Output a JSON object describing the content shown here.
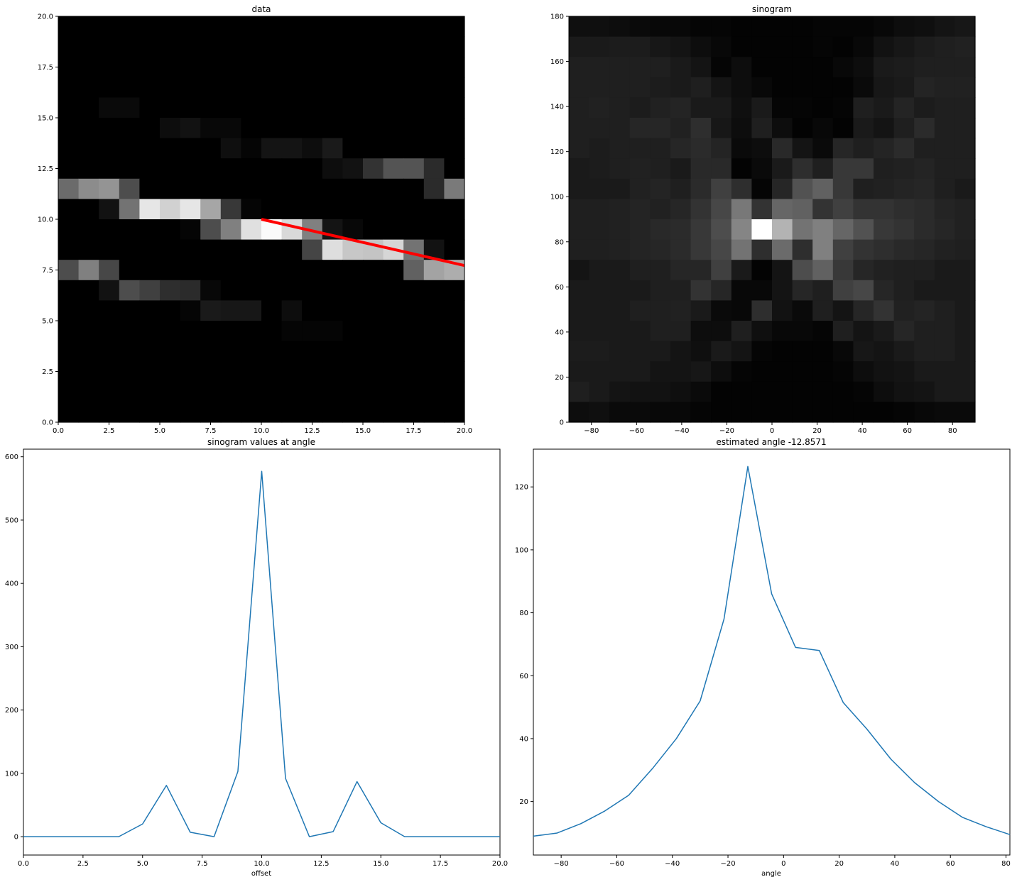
{
  "chart_data": [
    {
      "id": "data",
      "type": "heatmap",
      "title": "data",
      "xlabel": "",
      "ylabel": "",
      "xlim": [
        0,
        20
      ],
      "ylim": [
        0,
        20
      ],
      "xticks": [
        "0.0",
        "2.5",
        "5.0",
        "7.5",
        "10.0",
        "12.5",
        "15.0",
        "17.5",
        "20.0"
      ],
      "yticks": [
        "0.0",
        "2.5",
        "5.0",
        "7.5",
        "10.0",
        "12.5",
        "15.0",
        "17.5",
        "20.0"
      ],
      "colormap": "gray",
      "rows_top_to_bottom": [
        [
          0,
          0,
          0,
          0,
          0,
          0,
          0,
          0,
          0,
          0,
          0,
          0,
          0,
          0,
          0,
          0,
          0,
          0,
          0,
          0
        ],
        [
          0,
          0,
          0,
          0,
          0,
          0,
          0,
          0,
          0,
          0,
          0,
          0,
          0,
          0,
          0,
          0,
          0,
          0,
          0,
          0
        ],
        [
          0,
          0,
          0,
          0,
          0,
          0,
          0,
          0,
          0,
          0,
          0,
          0,
          0,
          0,
          0,
          0,
          0,
          0,
          0,
          0
        ],
        [
          0,
          0,
          0,
          0,
          0,
          0,
          0,
          0,
          0,
          0,
          0,
          0,
          0,
          0,
          0,
          0,
          0,
          0,
          0,
          0
        ],
        [
          0,
          0,
          0.04,
          0.04,
          0,
          0,
          0,
          0,
          0,
          0,
          0,
          0,
          0,
          0,
          0,
          0,
          0,
          0,
          0,
          0
        ],
        [
          0,
          0,
          0,
          0,
          0,
          0.05,
          0.07,
          0.03,
          0.03,
          0,
          0,
          0,
          0,
          0,
          0,
          0,
          0,
          0,
          0,
          0
        ],
        [
          0,
          0,
          0,
          0,
          0,
          0,
          0,
          0,
          0.06,
          0.02,
          0.08,
          0.08,
          0.05,
          0.1,
          0,
          0,
          0,
          0,
          0,
          0
        ],
        [
          0,
          0,
          0,
          0,
          0,
          0,
          0,
          0,
          0,
          0,
          0,
          0,
          0,
          0.05,
          0.07,
          0.2,
          0.33,
          0.33,
          0.17,
          0
        ],
        [
          0.42,
          0.55,
          0.58,
          0.3,
          0,
          0,
          0,
          0,
          0,
          0,
          0,
          0,
          0,
          0,
          0,
          0,
          0,
          0,
          0.17,
          0.48
        ],
        [
          0,
          0,
          0.07,
          0.45,
          0.9,
          0.82,
          0.9,
          0.65,
          0.22,
          0.02,
          0,
          0,
          0,
          0,
          0,
          0,
          0,
          0,
          0,
          0
        ],
        [
          0,
          0,
          0,
          0,
          0,
          0,
          0.02,
          0.3,
          0.5,
          0.88,
          0.98,
          0.85,
          0.5,
          0.08,
          0.03,
          0,
          0,
          0,
          0,
          0
        ],
        [
          0,
          0,
          0,
          0,
          0,
          0,
          0,
          0,
          0,
          0,
          0,
          0,
          0.27,
          0.87,
          0.78,
          0.77,
          0.84,
          0.45,
          0.07,
          0
        ],
        [
          0.3,
          0.5,
          0.28,
          0,
          0,
          0,
          0,
          0,
          0,
          0,
          0,
          0,
          0,
          0,
          0,
          0,
          0,
          0.38,
          0.64,
          0.68
        ],
        [
          0,
          0,
          0.07,
          0.3,
          0.25,
          0.18,
          0.17,
          0.03,
          0,
          0,
          0,
          0,
          0,
          0,
          0,
          0,
          0,
          0,
          0,
          0
        ],
        [
          0,
          0,
          0,
          0,
          0,
          0,
          0.02,
          0.1,
          0.09,
          0.09,
          0,
          0.05,
          0,
          0,
          0,
          0,
          0,
          0,
          0,
          0
        ],
        [
          0,
          0,
          0,
          0,
          0,
          0,
          0,
          0,
          0,
          0,
          0,
          0.02,
          0.02,
          0.02,
          0,
          0,
          0,
          0,
          0,
          0
        ],
        [
          0,
          0,
          0,
          0,
          0,
          0,
          0,
          0,
          0,
          0,
          0,
          0,
          0,
          0,
          0,
          0,
          0,
          0,
          0,
          0
        ],
        [
          0,
          0,
          0,
          0,
          0,
          0,
          0,
          0,
          0,
          0,
          0,
          0,
          0,
          0,
          0,
          0,
          0,
          0,
          0,
          0
        ],
        [
          0,
          0,
          0,
          0,
          0,
          0,
          0,
          0,
          0,
          0,
          0,
          0,
          0,
          0,
          0,
          0,
          0,
          0,
          0,
          0
        ],
        [
          0,
          0,
          0,
          0,
          0,
          0,
          0,
          0,
          0,
          0,
          0,
          0,
          0,
          0,
          0,
          0,
          0,
          0,
          0,
          0
        ]
      ],
      "overlay_line": {
        "color": "#ff0000",
        "x": [
          10,
          20
        ],
        "y": [
          10,
          7.72
        ]
      }
    },
    {
      "id": "sinogram",
      "type": "heatmap",
      "title": "sinogram",
      "xlabel": "",
      "ylabel": "",
      "xlim": [
        -90,
        90
      ],
      "ylim": [
        0,
        180
      ],
      "xticks": [
        "−80",
        "−60",
        "−40",
        "−20",
        "0",
        "20",
        "40",
        "60",
        "80"
      ],
      "yticks": [
        "0",
        "20",
        "40",
        "60",
        "80",
        "100",
        "120",
        "140",
        "160",
        "180"
      ],
      "colormap": "gray",
      "rows_top_to_bottom": [
        [
          0.06,
          0.06,
          0.05,
          0.04,
          0.03,
          0.03,
          0.02,
          0.02,
          0.01,
          0.01,
          0.01,
          0.01,
          0.02,
          0.02,
          0.02,
          0.03,
          0.05,
          0.06,
          0.08,
          0.09
        ],
        [
          0.1,
          0.1,
          0.11,
          0.11,
          0.09,
          0.08,
          0.05,
          0.03,
          0.01,
          0.01,
          0.01,
          0.01,
          0.02,
          0.01,
          0.03,
          0.07,
          0.09,
          0.11,
          0.12,
          0.13
        ],
        [
          0.12,
          0.12,
          0.12,
          0.12,
          0.12,
          0.1,
          0.08,
          0.02,
          0.05,
          0.01,
          0.01,
          0.01,
          0.01,
          0.03,
          0.05,
          0.1,
          0.11,
          0.12,
          0.12,
          0.12
        ],
        [
          0.12,
          0.12,
          0.12,
          0.12,
          0.11,
          0.1,
          0.12,
          0.08,
          0.05,
          0.03,
          0.01,
          0.01,
          0.01,
          0.01,
          0.04,
          0.09,
          0.1,
          0.14,
          0.13,
          0.13
        ],
        [
          0.12,
          0.13,
          0.12,
          0.11,
          0.13,
          0.14,
          0.1,
          0.1,
          0.06,
          0.1,
          0.02,
          0.02,
          0.01,
          0.02,
          0.12,
          0.1,
          0.14,
          0.11,
          0.12,
          0.12
        ],
        [
          0.12,
          0.12,
          0.12,
          0.15,
          0.15,
          0.13,
          0.18,
          0.09,
          0.05,
          0.12,
          0.05,
          0.01,
          0.03,
          0.01,
          0.1,
          0.08,
          0.12,
          0.17,
          0.12,
          0.12
        ],
        [
          0.12,
          0.11,
          0.12,
          0.12,
          0.12,
          0.15,
          0.17,
          0.14,
          0.04,
          0.05,
          0.16,
          0.08,
          0.04,
          0.15,
          0.12,
          0.14,
          0.17,
          0.12,
          0.12,
          0.12
        ],
        [
          0.1,
          0.11,
          0.12,
          0.13,
          0.12,
          0.1,
          0.16,
          0.16,
          0.01,
          0.04,
          0.1,
          0.18,
          0.12,
          0.22,
          0.22,
          0.12,
          0.13,
          0.14,
          0.12,
          0.12
        ],
        [
          0.1,
          0.1,
          0.1,
          0.13,
          0.14,
          0.12,
          0.17,
          0.25,
          0.18,
          0.02,
          0.15,
          0.32,
          0.38,
          0.22,
          0.12,
          0.13,
          0.14,
          0.15,
          0.12,
          0.1
        ],
        [
          0.12,
          0.12,
          0.13,
          0.14,
          0.13,
          0.15,
          0.2,
          0.28,
          0.47,
          0.2,
          0.4,
          0.38,
          0.2,
          0.25,
          0.2,
          0.2,
          0.18,
          0.17,
          0.14,
          0.13
        ],
        [
          0.12,
          0.12,
          0.13,
          0.14,
          0.16,
          0.17,
          0.22,
          0.3,
          0.52,
          1.0,
          0.7,
          0.45,
          0.5,
          0.4,
          0.32,
          0.22,
          0.2,
          0.17,
          0.15,
          0.13
        ],
        [
          0.12,
          0.12,
          0.13,
          0.14,
          0.15,
          0.17,
          0.22,
          0.28,
          0.45,
          0.18,
          0.42,
          0.18,
          0.5,
          0.25,
          0.2,
          0.18,
          0.16,
          0.15,
          0.13,
          0.12
        ],
        [
          0.08,
          0.1,
          0.1,
          0.12,
          0.12,
          0.15,
          0.15,
          0.25,
          0.1,
          0.01,
          0.08,
          0.3,
          0.38,
          0.22,
          0.15,
          0.13,
          0.12,
          0.12,
          0.1,
          0.1
        ],
        [
          0.1,
          0.1,
          0.1,
          0.1,
          0.12,
          0.12,
          0.2,
          0.15,
          0.03,
          0.03,
          0.08,
          0.15,
          0.12,
          0.25,
          0.28,
          0.15,
          0.12,
          0.1,
          0.1,
          0.1
        ],
        [
          0.1,
          0.1,
          0.1,
          0.12,
          0.12,
          0.13,
          0.1,
          0.04,
          0.03,
          0.18,
          0.07,
          0.04,
          0.12,
          0.08,
          0.15,
          0.2,
          0.13,
          0.14,
          0.12,
          0.1
        ],
        [
          0.1,
          0.1,
          0.1,
          0.1,
          0.12,
          0.12,
          0.05,
          0.05,
          0.12,
          0.06,
          0.03,
          0.03,
          0.02,
          0.12,
          0.08,
          0.1,
          0.15,
          0.12,
          0.12,
          0.1
        ],
        [
          0.11,
          0.11,
          0.1,
          0.1,
          0.1,
          0.08,
          0.06,
          0.1,
          0.08,
          0.02,
          0.01,
          0.01,
          0.01,
          0.03,
          0.09,
          0.08,
          0.1,
          0.12,
          0.12,
          0.1
        ],
        [
          0.1,
          0.1,
          0.1,
          0.1,
          0.08,
          0.08,
          0.09,
          0.05,
          0.02,
          0.01,
          0.01,
          0.01,
          0.01,
          0.02,
          0.05,
          0.07,
          0.08,
          0.1,
          0.1,
          0.1
        ],
        [
          0.12,
          0.1,
          0.08,
          0.07,
          0.07,
          0.06,
          0.04,
          0.01,
          0.01,
          0.01,
          0.01,
          0.01,
          0.01,
          0.01,
          0.02,
          0.05,
          0.07,
          0.08,
          0.1,
          0.1
        ],
        [
          0.05,
          0.06,
          0.04,
          0.04,
          0.03,
          0.03,
          0.02,
          0.01,
          0.01,
          0.01,
          0.01,
          0.01,
          0.01,
          0.01,
          0.01,
          0.01,
          0.02,
          0.03,
          0.04,
          0.04
        ]
      ]
    },
    {
      "id": "sinogram-at-angle",
      "type": "line",
      "title": "sinogram values at angle",
      "xlabel": "offset",
      "ylabel": "",
      "xlim": [
        0,
        20
      ],
      "ylim": [
        -29,
        612
      ],
      "xticks": [
        0,
        2.5,
        5,
        7.5,
        10,
        12.5,
        15,
        17.5,
        20
      ],
      "xtick_labels": [
        "0.0",
        "2.5",
        "5.0",
        "7.5",
        "10.0",
        "12.5",
        "15.0",
        "17.5",
        "20.0"
      ],
      "yticks": [
        0,
        100,
        200,
        300,
        400,
        500,
        600
      ],
      "ytick_labels": [
        "0",
        "100",
        "200",
        "300",
        "400",
        "500",
        "600"
      ],
      "line_color": "#1f77b4",
      "x": [
        0,
        1,
        2,
        3,
        4,
        5,
        6,
        7,
        8,
        9,
        10,
        11,
        12,
        13,
        14,
        15,
        16,
        17,
        18,
        19,
        20
      ],
      "y": [
        0,
        0,
        0,
        0,
        0,
        20,
        81,
        7,
        0,
        103,
        577,
        92,
        0,
        8,
        87,
        22,
        0,
        0,
        0,
        0,
        0
      ]
    },
    {
      "id": "estimated-angle",
      "type": "line",
      "title": "estimated angle -12.8571",
      "xlabel": "angle",
      "ylabel": "",
      "xlim": [
        -90,
        81.4
      ],
      "ylim": [
        3,
        132
      ],
      "xticks": [
        -80,
        -60,
        -40,
        -20,
        0,
        20,
        40,
        60,
        80
      ],
      "xtick_labels": [
        "−80",
        "−60",
        "−40",
        "−20",
        "0",
        "20",
        "40",
        "60",
        "80"
      ],
      "yticks": [
        20,
        40,
        60,
        80,
        100,
        120
      ],
      "ytick_labels": [
        "20",
        "40",
        "60",
        "80",
        "100",
        "120"
      ],
      "line_color": "#1f77b4",
      "x": [
        -90,
        -81.43,
        -72.86,
        -64.29,
        -55.71,
        -47.14,
        -38.57,
        -30,
        -21.43,
        -12.86,
        -4.29,
        4.29,
        12.86,
        21.43,
        30,
        38.57,
        47.14,
        55.71,
        64.29,
        72.86,
        81.43
      ],
      "y": [
        9,
        10,
        13,
        17,
        22,
        30.5,
        40,
        52,
        78,
        126.5,
        86,
        69,
        68,
        51.5,
        43,
        33.5,
        26,
        20,
        15,
        12,
        9.5
      ]
    }
  ]
}
